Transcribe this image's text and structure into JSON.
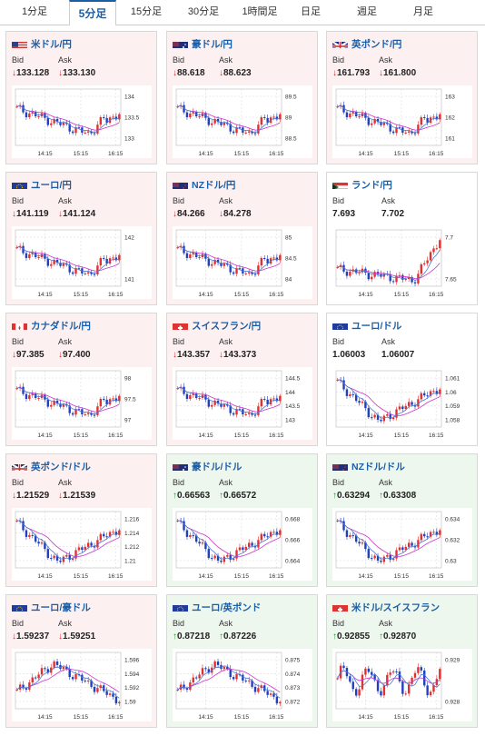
{
  "tabs": [
    {
      "label": "1分足",
      "active": false
    },
    {
      "label": "5分足",
      "active": true
    },
    {
      "label": "15分足",
      "active": false
    },
    {
      "label": "30分足",
      "active": false
    },
    {
      "label": "1時間足",
      "active": false
    },
    {
      "label": "日足",
      "active": false
    },
    {
      "label": "週足",
      "active": false
    },
    {
      "label": "月足",
      "active": false
    }
  ],
  "bid_label": "Bid",
  "ask_label": "Ask",
  "colors": {
    "up": "#2a9a3a",
    "down": "#d03030",
    "link": "#1a5ea8",
    "ma_line": "#cc33cc",
    "candle_up": "#e03030",
    "candle_down": "#2040c0"
  },
  "pairs": [
    {
      "name": "米ドル/円",
      "flag": "us",
      "bid": "133.128",
      "ask": "133.130",
      "dir": "down",
      "tone": "down",
      "chart": {
        "y_ticks": [
          "134",
          "133.5",
          "133"
        ],
        "x_ticks": [
          "14:15",
          "15:15",
          "16:15"
        ],
        "shape": "vup"
      }
    },
    {
      "name": "豪ドル/円",
      "flag": "au",
      "bid": "88.618",
      "ask": "88.623",
      "dir": "down",
      "tone": "down",
      "chart": {
        "y_ticks": [
          "89.5",
          "89",
          "88.5"
        ],
        "x_ticks": [
          "14:15",
          "15:15",
          "16:15"
        ],
        "shape": "vup"
      }
    },
    {
      "name": "英ポンド/円",
      "flag": "gb",
      "bid": "161.793",
      "ask": "161.800",
      "dir": "down",
      "tone": "down",
      "chart": {
        "y_ticks": [
          "163",
          "162",
          "161"
        ],
        "x_ticks": [
          "14:15",
          "15:15",
          "16:15"
        ],
        "shape": "vup"
      }
    },
    {
      "name": "ユーロ/円",
      "flag": "eu",
      "bid": "141.119",
      "ask": "141.124",
      "dir": "down",
      "tone": "down",
      "chart": {
        "y_ticks": [
          "142",
          "141"
        ],
        "x_ticks": [
          "14:15",
          "15:15",
          "16:15"
        ],
        "shape": "vup"
      }
    },
    {
      "name": "NZドル/円",
      "flag": "nz",
      "bid": "84.266",
      "ask": "84.278",
      "dir": "down",
      "tone": "down",
      "chart": {
        "y_ticks": [
          "85",
          "84.5",
          "84"
        ],
        "x_ticks": [
          "14:15",
          "15:15",
          "16:15"
        ],
        "shape": "vup"
      }
    },
    {
      "name": "ランド/円",
      "flag": "za",
      "bid": "7.693",
      "ask": "7.702",
      "dir": "none",
      "tone": "neutral",
      "chart": {
        "y_ticks": [
          "7.7",
          "7.65"
        ],
        "x_ticks": [
          "14:15",
          "15:15",
          "16:15"
        ],
        "shape": "rise"
      }
    },
    {
      "name": "カナダドル/円",
      "flag": "ca",
      "bid": "97.385",
      "ask": "97.400",
      "dir": "down",
      "tone": "down",
      "chart": {
        "y_ticks": [
          "98",
          "97.5",
          "97"
        ],
        "x_ticks": [
          "14:15",
          "15:15",
          "16:15"
        ],
        "shape": "vup"
      }
    },
    {
      "name": "スイスフラン/円",
      "flag": "ch",
      "bid": "143.357",
      "ask": "143.373",
      "dir": "down",
      "tone": "down",
      "chart": {
        "y_ticks": [
          "144.5",
          "144",
          "143.5",
          "143"
        ],
        "x_ticks": [
          "14:15",
          "15:15",
          "16:15"
        ],
        "shape": "vup"
      }
    },
    {
      "name": "ユーロ/ドル",
      "flag": "eu",
      "bid": "1.06003",
      "ask": "1.06007",
      "dir": "none",
      "tone": "neutral",
      "chart": {
        "y_ticks": [
          "1.061",
          "1.06",
          "1.059",
          "1.058"
        ],
        "x_ticks": [
          "14:15",
          "15:15",
          "16:15"
        ],
        "shape": "dip"
      }
    },
    {
      "name": "英ポンド/ドル",
      "flag": "gb",
      "bid": "1.21529",
      "ask": "1.21539",
      "dir": "down",
      "tone": "down",
      "chart": {
        "y_ticks": [
          "1.216",
          "1.214",
          "1.212",
          "1.21"
        ],
        "x_ticks": [
          "14:15",
          "15:15",
          "16:15"
        ],
        "shape": "dip"
      }
    },
    {
      "name": "豪ドル/ドル",
      "flag": "au",
      "bid": "0.66563",
      "ask": "0.66572",
      "dir": "up",
      "tone": "up",
      "chart": {
        "y_ticks": [
          "0.668",
          "0.666",
          "0.664"
        ],
        "x_ticks": [
          "14:15",
          "15:15",
          "16:15"
        ],
        "shape": "dip"
      }
    },
    {
      "name": "NZドル/ドル",
      "flag": "nz",
      "bid": "0.63294",
      "ask": "0.63308",
      "dir": "up",
      "tone": "up",
      "chart": {
        "y_ticks": [
          "0.634",
          "0.632",
          "0.63"
        ],
        "x_ticks": [
          "14:15",
          "15:15",
          "16:15"
        ],
        "shape": "dip"
      }
    },
    {
      "name": "ユーロ/豪ドル",
      "flag": "eu",
      "bid": "1.59237",
      "ask": "1.59251",
      "dir": "down",
      "tone": "down",
      "chart": {
        "y_ticks": [
          "1.596",
          "1.594",
          "1.592",
          "1.59"
        ],
        "x_ticks": [
          "14:15",
          "15:15",
          "16:15"
        ],
        "shape": "hump"
      }
    },
    {
      "name": "ユーロ/英ポンド",
      "flag": "eu",
      "bid": "0.87218",
      "ask": "0.87226",
      "dir": "up",
      "tone": "up",
      "chart": {
        "y_ticks": [
          "0.875",
          "0.874",
          "0.873",
          "0.872"
        ],
        "x_ticks": [
          "14:15",
          "15:15",
          "16:15"
        ],
        "shape": "hump"
      }
    },
    {
      "name": "米ドル/スイスフラン",
      "flag": "ch",
      "bid": "0.92855",
      "ask": "0.92870",
      "dir": "up",
      "tone": "up",
      "chart": {
        "y_ticks": [
          "0.929",
          "0.928"
        ],
        "x_ticks": [
          "14:15",
          "15:15",
          "16:15"
        ],
        "shape": "flat"
      }
    }
  ]
}
